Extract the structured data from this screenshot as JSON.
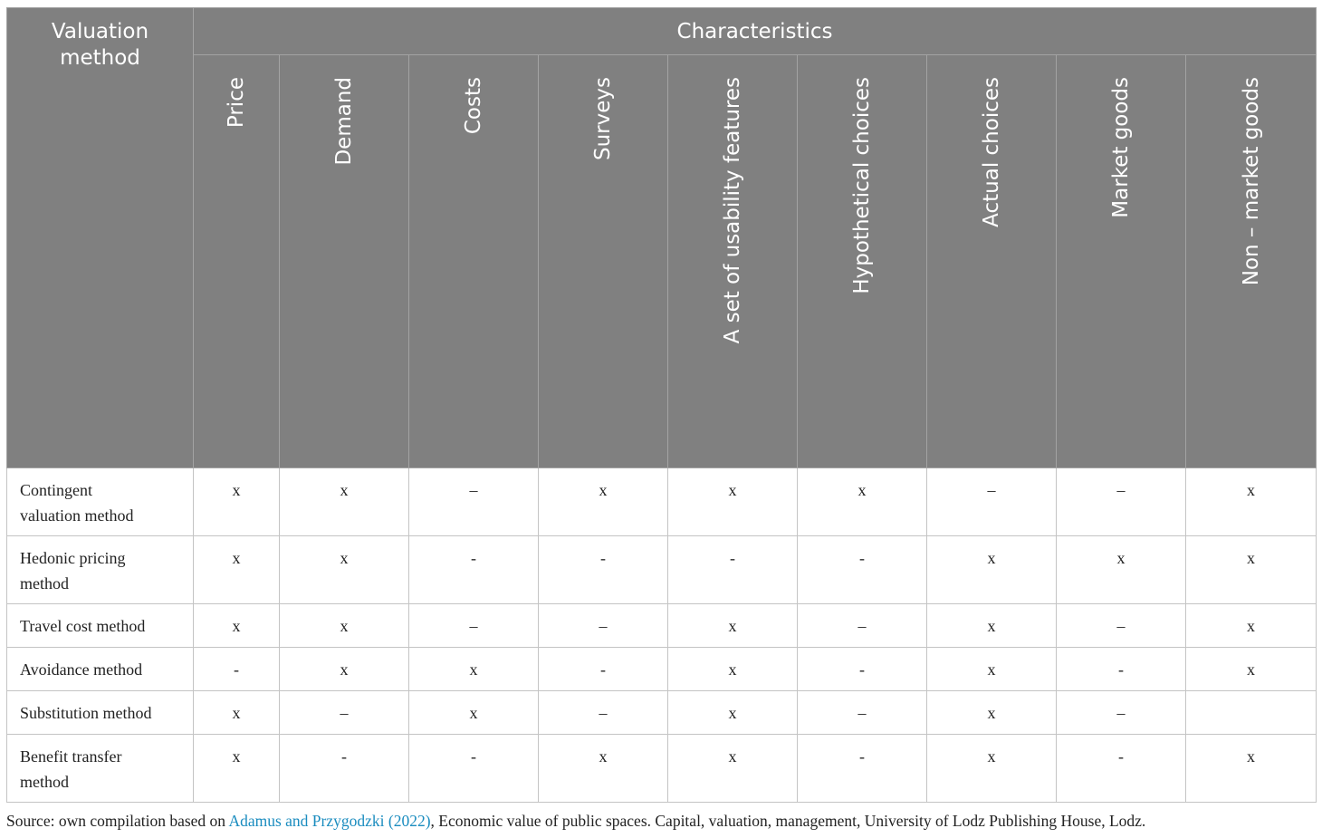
{
  "table": {
    "method_header": "Valuation method",
    "group_header": "Characteristics",
    "columns": [
      "Price",
      "Demand",
      "Costs",
      "Surveys",
      "A set of usability features",
      "Hypothetical choices",
      "Actual choices",
      "Market goods",
      "Non – market goods"
    ],
    "rows": [
      {
        "method": "Contingent valuation method",
        "values": [
          "x",
          "x",
          "–",
          "x",
          "x",
          "x",
          "–",
          "–",
          "x"
        ]
      },
      {
        "method": "Hedonic pricing method",
        "values": [
          "x",
          "x",
          "-",
          "-",
          "-",
          "-",
          "x",
          "x",
          "x"
        ]
      },
      {
        "method": "Travel cost method",
        "values": [
          "x",
          "x",
          "–",
          "–",
          "x",
          "–",
          "x",
          "–",
          "x"
        ]
      },
      {
        "method": "Avoidance method",
        "values": [
          "-",
          "x",
          "x",
          "-",
          "x",
          "-",
          "x",
          "-",
          "x"
        ]
      },
      {
        "method": "Substitution method",
        "values": [
          "x",
          "–",
          "x",
          "–",
          "x",
          "–",
          "x",
          "–",
          ""
        ]
      },
      {
        "method": "Benefit transfer method",
        "values": [
          "x",
          "-",
          "-",
          "x",
          "x",
          "-",
          "x",
          "-",
          "x"
        ]
      }
    ]
  },
  "source": {
    "prefix": "Source: own compilation based on ",
    "link": "Adamus and Przygodzki (2022)",
    "suffix": ", Economic value of public spaces. Capital, valuation, management, University of Lodz Publishing House, Lodz."
  }
}
